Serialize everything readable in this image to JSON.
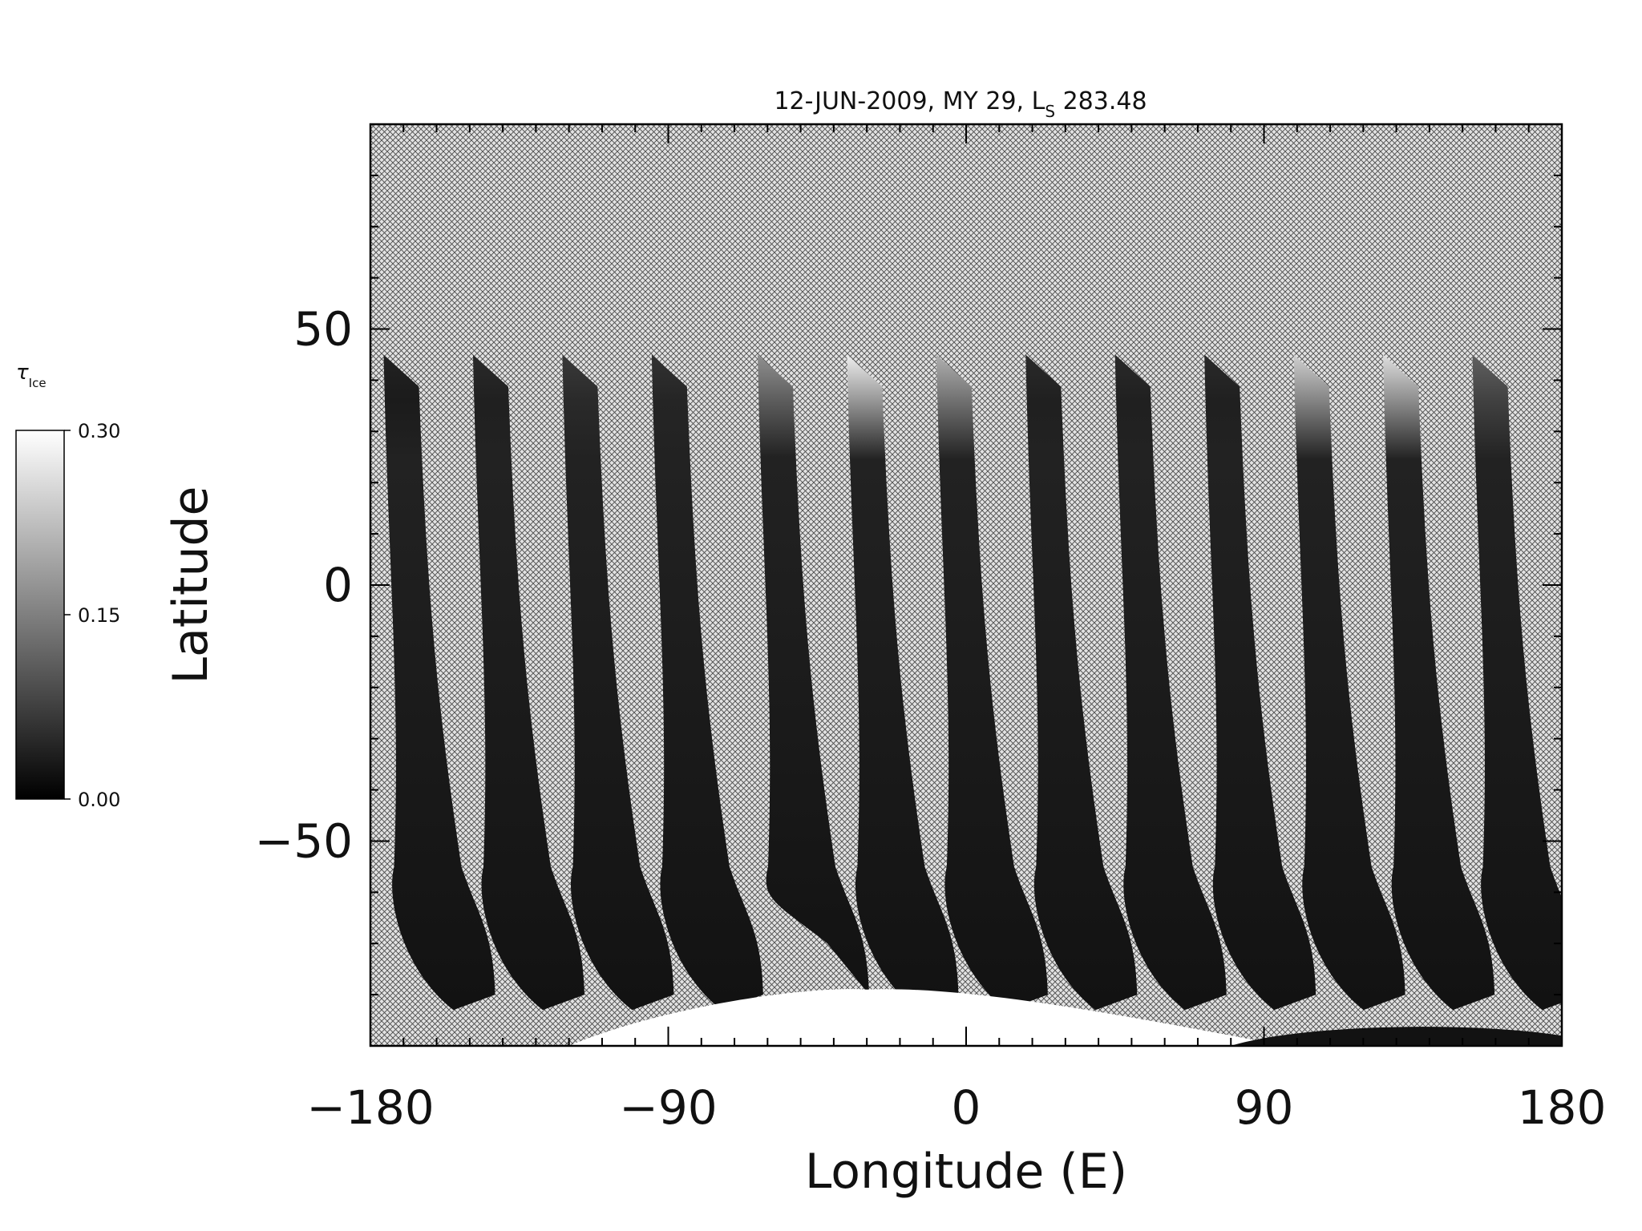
{
  "chart_data": {
    "type": "heatmap",
    "title_main": "12-JUN-2009, MY 29,  L",
    "title_sub": "S",
    "title_value": " 283.48",
    "xlabel": "Longitude (E)",
    "ylabel": "Latitude",
    "xlim": [
      -180,
      180
    ],
    "ylim": [
      -90,
      90
    ],
    "x_ticks": [
      -180,
      -90,
      0,
      90,
      180
    ],
    "x_tick_labels": [
      "−180",
      "−90",
      "0",
      "90",
      "180"
    ],
    "y_ticks": [
      -50,
      0,
      50
    ],
    "y_tick_labels": [
      "−50",
      "0",
      "50"
    ],
    "colorbar": {
      "label": "τ",
      "label_sub": "Ice",
      "range": [
        0.0,
        0.3
      ],
      "tick_values": [
        0.0,
        0.15,
        0.3
      ],
      "tick_labels": [
        "0.00",
        "0.15",
        "0.30"
      ],
      "colormap": "grayscale"
    },
    "no_data_pattern": "crosshatch",
    "swaths": [
      {
        "lon_north": -176,
        "lat_north": 45,
        "lon_south": -168,
        "lat_south": -83,
        "peak_lat": 40,
        "peak_value": 0.02
      },
      {
        "lon_north": -149,
        "lat_north": 45,
        "lon_south": -141,
        "lat_south": -83,
        "peak_lat": 40,
        "peak_value": 0.03
      },
      {
        "lon_north": -122,
        "lat_north": 45,
        "lon_south": -114,
        "lat_south": -83,
        "peak_lat": 40,
        "peak_value": 0.05
      },
      {
        "lon_north": -95,
        "lat_north": 45,
        "lon_south": -87,
        "lat_south": -83,
        "peak_lat": 40,
        "peak_value": 0.04
      },
      {
        "lon_north": -63,
        "lat_north": 45,
        "lon_south": -55,
        "lat_south": -70,
        "peak_lat": 40,
        "peak_value": 0.16
      },
      {
        "lon_north": -36,
        "lat_north": 45,
        "lon_south": -28,
        "lat_south": -83,
        "peak_lat": 40,
        "peak_value": 0.28
      },
      {
        "lon_north": -9,
        "lat_north": 45,
        "lon_south": -1,
        "lat_south": -83,
        "peak_lat": 40,
        "peak_value": 0.2
      },
      {
        "lon_north": 18,
        "lat_north": 45,
        "lon_south": 26,
        "lat_south": -83,
        "peak_lat": 40,
        "peak_value": 0.03
      },
      {
        "lon_north": 45,
        "lat_north": 45,
        "lon_south": 53,
        "lat_south": -83,
        "peak_lat": 40,
        "peak_value": 0.03
      },
      {
        "lon_north": 72,
        "lat_north": 45,
        "lon_south": 80,
        "lat_south": -83,
        "peak_lat": 40,
        "peak_value": 0.03
      },
      {
        "lon_north": 99,
        "lat_north": 45,
        "lon_south": 107,
        "lat_south": -83,
        "peak_lat": 40,
        "peak_value": 0.24
      },
      {
        "lon_north": 126,
        "lat_north": 45,
        "lon_south": 134,
        "lat_south": -83,
        "peak_lat": 40,
        "peak_value": 0.26
      },
      {
        "lon_north": 153,
        "lat_north": 45,
        "lon_south": 161,
        "lat_south": -83,
        "peak_lat": 40,
        "peak_value": 0.1
      }
    ],
    "south_polar_bright_region": {
      "lon_range": [
        -120,
        60
      ],
      "lat_top": -79,
      "value": 0.3
    }
  }
}
